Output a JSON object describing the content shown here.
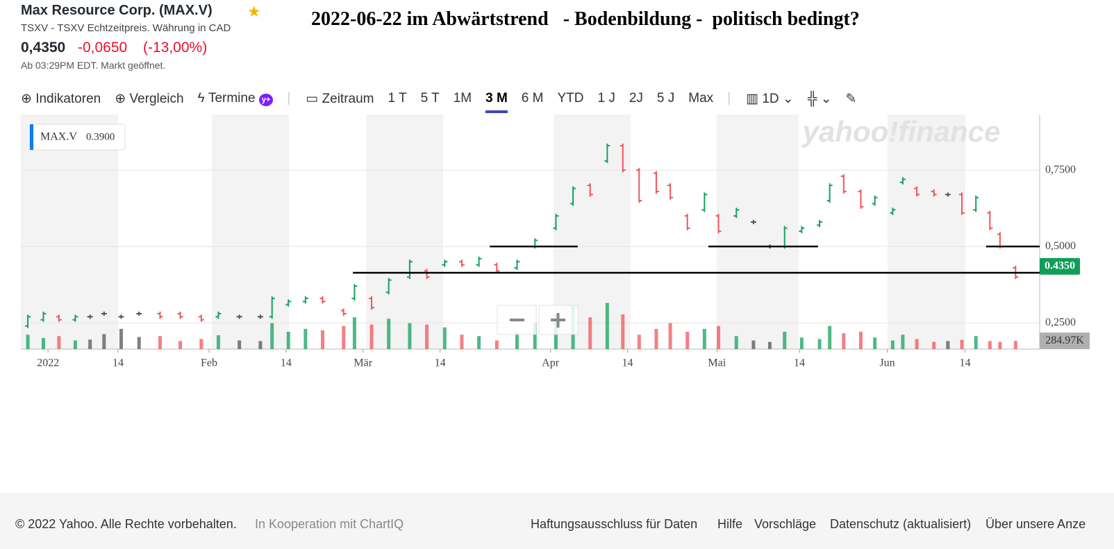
{
  "header": {
    "name": "Max Resource Corp. (MAX.V)",
    "exchange": "TSXV - TSXV Echtzeitpreis. Währung in CAD",
    "price": "0,4350",
    "change": "-0,0650",
    "change_pct": "(-13,00%)",
    "time": "Ab 03:29PM EDT. Markt geöffnet."
  },
  "annotation_title": "2022-06-22 im Abwärtstrend   - Bodenbildung -  politisch bedingt?",
  "toolbar": {
    "tools": [
      "Indikatoren",
      "Vergleich",
      "Termine"
    ],
    "period_label": "Zeitraum",
    "ranges": [
      "1 T",
      "5 T",
      "1M",
      "3 M",
      "6 M",
      "YTD",
      "1 J",
      "2J",
      "5 J",
      "Max"
    ],
    "active_range": 3,
    "interval": "1D"
  },
  "chart_data": {
    "type": "candlestick",
    "watermark": "yahoo!finance",
    "legend": {
      "symbol": "MAX.V",
      "value": "0.3900"
    },
    "xlim": [
      -1,
      130
    ],
    "xticks": [
      {
        "value": 2.5,
        "label": "2022"
      },
      {
        "value": 11.5,
        "label": "14"
      },
      {
        "value": 23.2,
        "label": "Feb"
      },
      {
        "value": 33.1,
        "label": "14"
      },
      {
        "value": 43,
        "label": "Mär"
      },
      {
        "value": 52.9,
        "label": "14"
      },
      {
        "value": 67.1,
        "label": "Apr"
      },
      {
        "value": 77,
        "label": "14"
      },
      {
        "value": 88.5,
        "label": "Mai"
      },
      {
        "value": 99.1,
        "label": "14"
      },
      {
        "value": 110.4,
        "label": "Jun"
      },
      {
        "value": 120.4,
        "label": "14"
      }
    ],
    "ylim": [
      0.164,
      0.932
    ],
    "yticks": [
      {
        "value": 0.25,
        "label": "0,2500"
      },
      {
        "value": 0.5,
        "label": "0,5000"
      },
      {
        "value": 0.75,
        "label": "0,7500"
      }
    ],
    "grid": true,
    "x": [
      -0.1,
      1.9,
      3.9,
      6.0,
      7.9,
      9.7,
      11.9,
      14.2,
      16.9,
      19.5,
      22.2,
      24.4,
      27.1,
      29.8,
      31.3,
      33.4,
      35.6,
      37.8,
      40.5,
      41.9,
      44.1,
      46.3,
      49.0,
      51.2,
      53.5,
      55.7,
      57.9,
      60.2,
      62.8,
      65.1,
      67.8,
      70.0,
      72.2,
      74.4,
      76.4,
      78.5,
      80.7,
      82.5,
      84.7,
      86.9,
      88.7,
      91.0,
      93.2,
      95.3,
      97.2,
      99.4,
      101.7,
      103.0,
      104.8,
      107.0,
      108.8,
      111.1,
      112.4,
      114.2,
      116.4,
      118.2,
      120.0,
      121.8,
      123.6,
      124.9,
      126.9
    ],
    "open": [
      0.24,
      0.26,
      0.27,
      0.26,
      0.27,
      0.28,
      0.27,
      0.28,
      0.28,
      0.28,
      0.27,
      0.27,
      0.27,
      0.27,
      0.27,
      0.31,
      0.32,
      0.33,
      0.29,
      0.33,
      0.33,
      0.35,
      0.4,
      0.42,
      0.44,
      0.45,
      0.44,
      0.44,
      0.43,
      0.5,
      0.56,
      0.64,
      0.7,
      0.78,
      0.83,
      0.75,
      0.74,
      0.7,
      0.6,
      0.62,
      0.6,
      0.6,
      0.58,
      0.5,
      0.5,
      0.55,
      0.57,
      0.65,
      0.73,
      0.68,
      0.64,
      0.61,
      0.71,
      0.69,
      0.68,
      0.67,
      0.67,
      0.62,
      0.61,
      0.54,
      0.43
    ],
    "close": [
      0.27,
      0.28,
      0.26,
      0.27,
      0.27,
      0.28,
      0.27,
      0.28,
      0.27,
      0.27,
      0.26,
      0.28,
      0.27,
      0.27,
      0.33,
      0.32,
      0.33,
      0.32,
      0.28,
      0.37,
      0.3,
      0.39,
      0.45,
      0.4,
      0.45,
      0.44,
      0.46,
      0.42,
      0.45,
      0.52,
      0.6,
      0.69,
      0.67,
      0.83,
      0.75,
      0.65,
      0.68,
      0.66,
      0.56,
      0.67,
      0.55,
      0.62,
      0.58,
      0.5,
      0.56,
      0.56,
      0.58,
      0.7,
      0.68,
      0.63,
      0.66,
      0.62,
      0.72,
      0.67,
      0.67,
      0.67,
      0.61,
      0.66,
      0.56,
      0.5,
      0.4
    ],
    "volume_lim": [
      0,
      3600
    ],
    "volume": [
      500,
      380,
      450,
      300,
      330,
      520,
      700,
      420,
      450,
      280,
      350,
      480,
      300,
      280,
      900,
      600,
      700,
      650,
      800,
      1100,
      850,
      1050,
      900,
      850,
      750,
      500,
      450,
      300,
      600,
      900,
      1200,
      1500,
      1100,
      1600,
      1200,
      500,
      700,
      900,
      600,
      700,
      800,
      450,
      300,
      250,
      600,
      400,
      350,
      800,
      550,
      600,
      400,
      300,
      500,
      350,
      250,
      280,
      320,
      450,
      280,
      250,
      284.97
    ],
    "volume_label": "284.97K",
    "current_price": {
      "value": 0.435,
      "label": "0.4350"
    },
    "annotation_lines": [
      {
        "y": 0.414,
        "x": [
          41.7,
          134.3
        ]
      },
      {
        "y": 0.5,
        "x": [
          59.3,
          70.6
        ]
      },
      {
        "y": 0.5,
        "x": [
          87.4,
          101.5
        ]
      },
      {
        "y": 0.5,
        "x": [
          123.1,
          130
        ]
      }
    ]
  },
  "footer": {
    "copyright": "© 2022 Yahoo. Alle Rechte vorbehalten.",
    "partner": "In Kooperation mit ChartIQ",
    "links": [
      "Haftungsausschluss für Daten",
      "Hilfe",
      "Vorschläge",
      "Datenschutz (aktualisiert)",
      "Über unsere Anze"
    ]
  }
}
